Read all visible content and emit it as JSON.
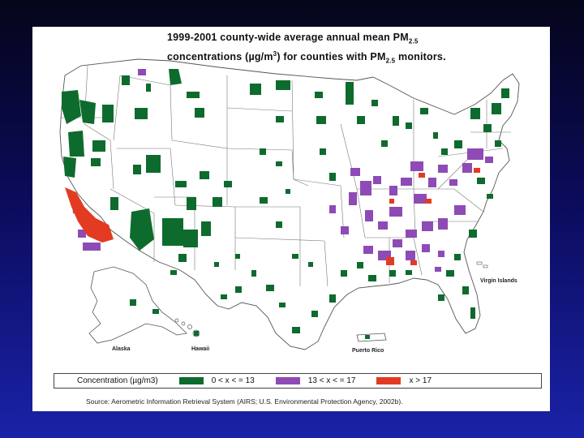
{
  "title": {
    "line1_pre": "1999-2001 county-wide average annual mean PM",
    "line1_sub": "2.5",
    "line2_pre": "concentrations (",
    "line2_unit": "µg/m",
    "line2_sup": "3",
    "line2_mid": ") for counties with PM",
    "line2_sub": "2.5",
    "line2_post": " monitors."
  },
  "labels": {
    "alaska": "Alaska",
    "hawaii": "Hawaii",
    "puerto_rico": "Puerto Rico",
    "virgin_islands": "Virgin Islands"
  },
  "legend": {
    "title": "Concentration (µg/m3)",
    "items": [
      {
        "label": "0 < x < = 13",
        "color": "#0e6b2e"
      },
      {
        "label": "13 < x < = 17",
        "color": "#8e4bb5"
      },
      {
        "label": "x > 17",
        "color": "#e33b22"
      }
    ]
  },
  "source": "Source: Aerometric Information Retrieval System (AIRS; U.S. Environmental Protection Agency, 2002b).",
  "colors": {
    "background_top": "#05051a",
    "background_bottom": "#1a22a8",
    "low": "#0e6b2e",
    "mid": "#8e4bb5",
    "high": "#e33b22"
  }
}
